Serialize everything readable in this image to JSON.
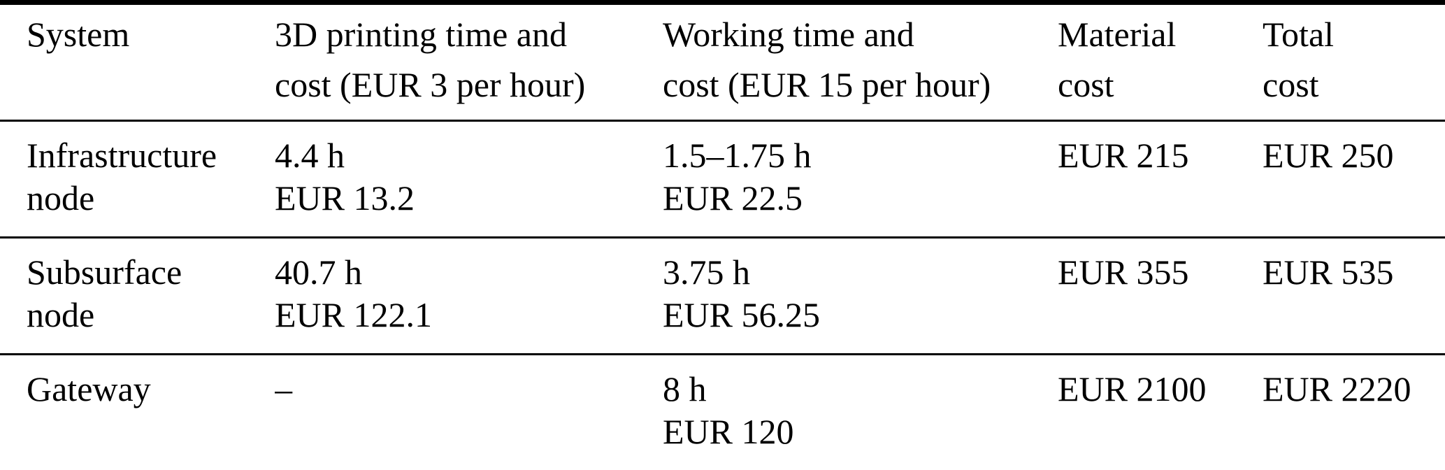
{
  "colors": {
    "background": "#ffffff",
    "text": "#000000",
    "rule": "#000000"
  },
  "table": {
    "headers": [
      [
        "System",
        ""
      ],
      [
        "3D printing time and",
        "cost (EUR 3 per hour)"
      ],
      [
        "Working time and",
        "cost (EUR 15 per hour)"
      ],
      [
        "Material",
        "cost"
      ],
      [
        "Total",
        "cost"
      ]
    ],
    "rows": [
      [
        [
          "Infrastructure",
          "node"
        ],
        [
          "4.4 h",
          "EUR 13.2"
        ],
        [
          "1.5–1.75 h",
          "EUR 22.5"
        ],
        [
          "EUR 215",
          ""
        ],
        [
          "EUR 250",
          ""
        ]
      ],
      [
        [
          "Subsurface",
          "node"
        ],
        [
          "40.7 h",
          "EUR 122.1"
        ],
        [
          "3.75 h",
          "EUR 56.25"
        ],
        [
          "EUR 355",
          ""
        ],
        [
          "EUR 535",
          ""
        ]
      ],
      [
        [
          "Gateway",
          ""
        ],
        [
          "–",
          ""
        ],
        [
          "8 h",
          "EUR 120"
        ],
        [
          "EUR 2100",
          ""
        ],
        [
          "EUR 2220",
          ""
        ]
      ]
    ]
  },
  "chart_data": {
    "type": "table",
    "columns": [
      "System",
      "3D printing time and cost (EUR 3 per hour)",
      "Working time and cost (EUR 15 per hour)",
      "Material cost",
      "Total cost"
    ],
    "rows": [
      [
        "Infrastructure node",
        "4.4 h / EUR 13.2",
        "1.5–1.75 h / EUR 22.5",
        "EUR 215",
        "EUR 250"
      ],
      [
        "Subsurface node",
        "40.7 h / EUR 122.1",
        "3.75 h / EUR 56.25",
        "EUR 355",
        "EUR 535"
      ],
      [
        "Gateway",
        "–",
        "8 h / EUR 120",
        "EUR 2100",
        "EUR 2220"
      ]
    ]
  }
}
